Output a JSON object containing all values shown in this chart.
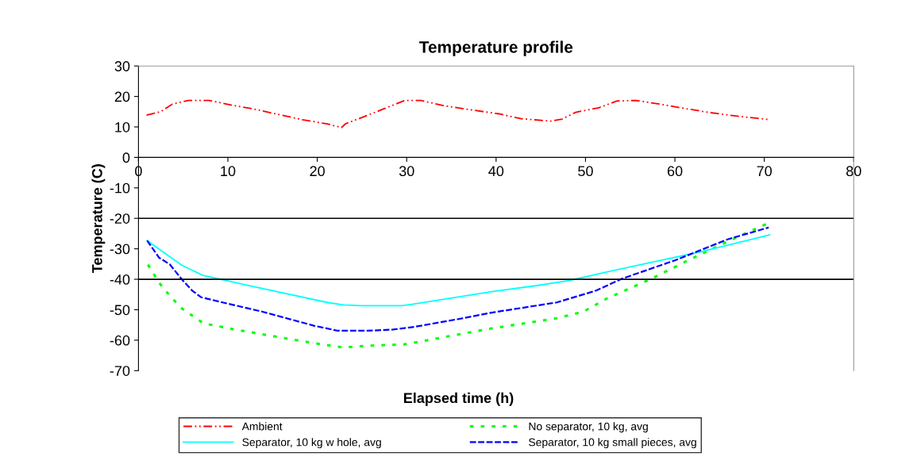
{
  "chart_data": {
    "type": "line",
    "title": "Temperature profile",
    "xlabel": "Elapsed time (h)",
    "ylabel": "Temperature (C)",
    "xlim": [
      0,
      80
    ],
    "xticks": [
      0,
      10,
      20,
      30,
      40,
      50,
      60,
      70,
      80
    ],
    "ylim": [
      -70,
      30
    ],
    "yticks": [
      -70,
      -60,
      -50,
      -40,
      -30,
      -20,
      -10,
      0,
      10,
      20,
      30
    ],
    "grid": false,
    "legend": "bottom",
    "marker": "none",
    "ref_lines": [
      {
        "axis": "y",
        "value": -20,
        "color": "#000000"
      },
      {
        "axis": "y",
        "value": -40,
        "color": "#000000"
      }
    ],
    "series": [
      {
        "name": "Ambient",
        "color": "#ff0000",
        "line_style": "dashdot",
        "x": [
          0.9,
          2.5,
          3.8,
          5.6,
          7.9,
          10.7,
          12.7,
          15.8,
          18.3,
          21.1,
          22.7,
          23.2,
          25,
          27.5,
          29.8,
          31.6,
          34.1,
          37.2,
          40.3,
          42.8,
          46.1,
          47.4,
          48.9,
          51.5,
          53.5,
          55.6,
          58.1,
          60.6,
          63.7,
          66.8,
          70.6
        ],
        "values": [
          13.9,
          15,
          17.5,
          18.7,
          18.7,
          17,
          16,
          14,
          12.4,
          11,
          9.8,
          11.1,
          13.1,
          16,
          18.7,
          18.7,
          17,
          15.6,
          14.3,
          12.7,
          11.9,
          12.6,
          14.8,
          16.3,
          18.5,
          18.7,
          17.6,
          16.3,
          14.8,
          13.6,
          12.4
        ]
      },
      {
        "name": "No separator, 10 kg, avg",
        "color": "#00ff00",
        "line_style": "dotted",
        "x": [
          1.06,
          2.3,
          3.5,
          4.9,
          7.3,
          10.8,
          15.3,
          19.7,
          22.9,
          25.6,
          29.7,
          32.9,
          39.4,
          46.8,
          49.8,
          52.4,
          57.1,
          63,
          67.4,
          70.2
        ],
        "values": [
          -35.2,
          -41.1,
          -45.4,
          -49.7,
          -54.5,
          -56.5,
          -58.8,
          -61,
          -62.4,
          -61.8,
          -61.4,
          -59.7,
          -56.2,
          -52.8,
          -50.6,
          -46.3,
          -40.2,
          -31.6,
          -25.6,
          -21.9
        ]
      },
      {
        "name": "Separator, 10 kg w hole, avg",
        "color": "#00ffff",
        "line_style": "solid",
        "x": [
          0.97,
          3.2,
          4.9,
          7.2,
          12.9,
          21.1,
          22.9,
          25,
          29.4,
          30.6,
          39.4,
          44.7,
          48.2,
          52.1,
          57.1,
          63,
          65.9,
          70.6
        ],
        "values": [
          -27.3,
          -32,
          -35.5,
          -38.7,
          -42.4,
          -47.6,
          -48.4,
          -48.7,
          -48.7,
          -48.2,
          -44.1,
          -42,
          -40.4,
          -37.8,
          -34.6,
          -30.9,
          -28.8,
          -25.4
        ]
      },
      {
        "name": "Separator, 10 kg small pieces, avg",
        "color": "#0000ff",
        "line_style": "dashed",
        "x": [
          0.97,
          2.3,
          3.5,
          4.9,
          6,
          7,
          9.4,
          13.8,
          19.7,
          22.3,
          25.6,
          28.5,
          30.9,
          35.9,
          39.4,
          46.8,
          51.2,
          54.1,
          60,
          65.9,
          70.5
        ],
        "values": [
          -27.3,
          -32.9,
          -35.1,
          -40.2,
          -43.7,
          -45.9,
          -47.6,
          -50.6,
          -55.3,
          -56.9,
          -56.9,
          -56.5,
          -55.6,
          -53,
          -51,
          -47.6,
          -43.7,
          -39.8,
          -33.8,
          -26.9,
          -23
        ]
      }
    ]
  }
}
